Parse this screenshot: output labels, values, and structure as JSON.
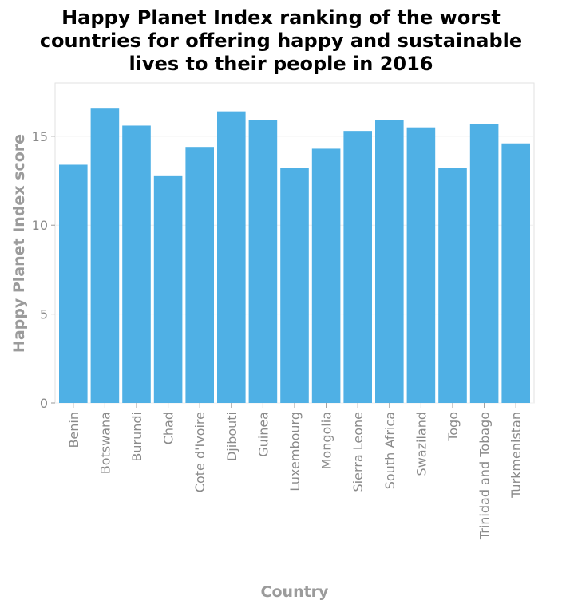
{
  "chart_data": {
    "type": "bar",
    "title_lines": [
      "Happy Planet Index ranking of the worst",
      "countries for offering happy and sustainable",
      "lives to their people in 2016"
    ],
    "xlabel": "Country",
    "ylabel": "Happy Planet Index score",
    "categories": [
      "Benin",
      "Botswana",
      "Burundi",
      "Chad",
      "Cote d'Ivoire",
      "Djibouti",
      "Guinea",
      "Luxembourg",
      "Mongolia",
      "Sierra Leone",
      "South Africa",
      "Swaziland",
      "Togo",
      "Trinidad and Tobago",
      "Turkmenistan"
    ],
    "values": [
      13.4,
      16.6,
      15.6,
      12.8,
      14.4,
      16.4,
      15.9,
      13.2,
      14.3,
      15.3,
      15.9,
      15.5,
      13.2,
      15.7,
      14.6
    ],
    "yticks": [
      0,
      5,
      10,
      15
    ],
    "ylim": [
      0,
      18
    ],
    "grid": true,
    "bar_color": "#4fb0e5"
  }
}
